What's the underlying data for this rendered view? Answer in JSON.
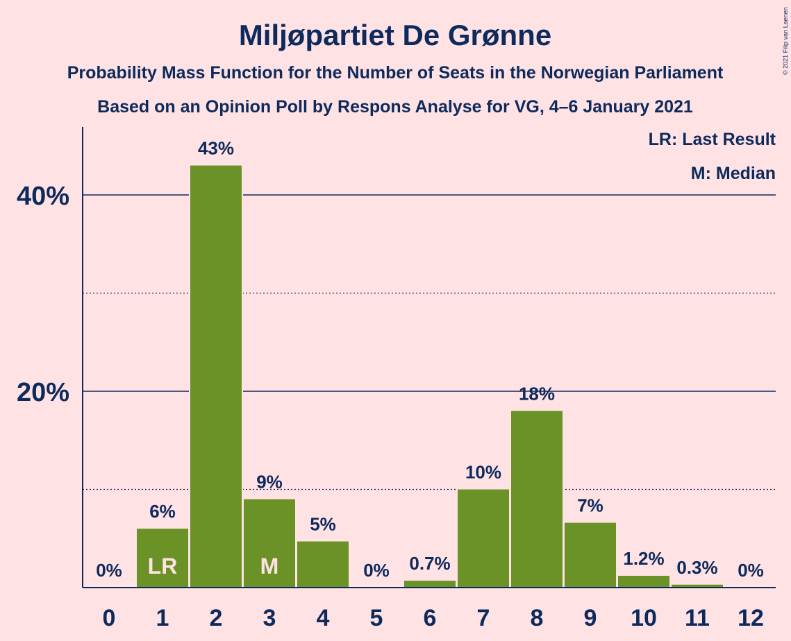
{
  "title": "Miljøpartiet De Grønne",
  "subtitle1": "Probability Mass Function for the Number of Seats in the Norwegian Parliament",
  "subtitle2": "Based on an Opinion Poll by Respons Analyse for VG, 4–6 January 2021",
  "copyright": "© 2021 Filip van Laenen",
  "legend": {
    "lr": "LR: Last Result",
    "m": "M: Median"
  },
  "colors": {
    "background": "#ffe2e4",
    "bar": "#6b9226",
    "text": "#0d2a5c"
  },
  "chart_data": {
    "type": "bar",
    "categories": [
      "0",
      "1",
      "2",
      "3",
      "4",
      "5",
      "6",
      "7",
      "8",
      "9",
      "10",
      "11",
      "12"
    ],
    "values": [
      0,
      6,
      43,
      9,
      4.7,
      0,
      0.7,
      10,
      18,
      6.6,
      1.2,
      0.3,
      0
    ],
    "labels": [
      "0%",
      "6%",
      "43%",
      "9%",
      "5%",
      "0%",
      "0.7%",
      "10%",
      "18%",
      "7%",
      "1.2%",
      "0.3%",
      "0%"
    ],
    "markers": {
      "1": "LR",
      "3": "M"
    },
    "ylim": [
      0,
      47
    ],
    "yticks": [
      {
        "value": 20,
        "label": "20%"
      },
      {
        "value": 40,
        "label": "40%"
      }
    ],
    "minor_gridlines": [
      10,
      30
    ],
    "legend_position": "top-right"
  }
}
